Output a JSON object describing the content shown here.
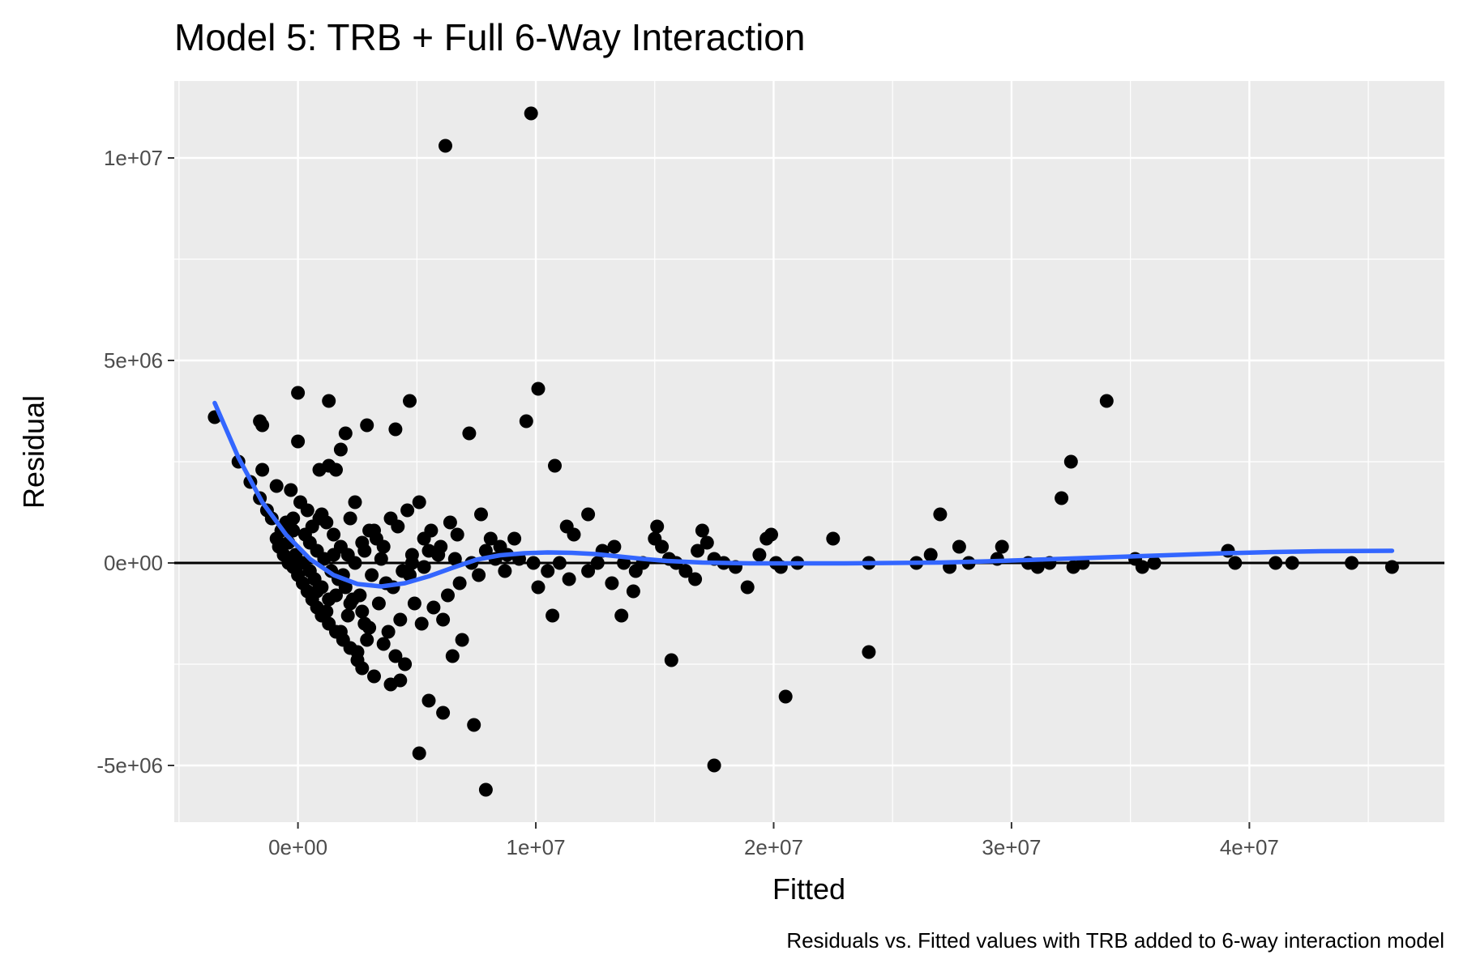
{
  "chart_data": {
    "type": "scatter",
    "title": "Model 5: TRB + Full 6-Way Interaction",
    "caption": "Residuals vs. Fitted values with TRB added to 6-way interaction model",
    "xlabel": "Fitted",
    "ylabel": "Residual",
    "xlim": [
      -5200000,
      48200000
    ],
    "ylim": [
      -6400000,
      11900000
    ],
    "x_ticks": [
      0,
      10000000,
      20000000,
      30000000,
      40000000
    ],
    "x_tick_labels": [
      "0e+00",
      "1e+07",
      "2e+07",
      "3e+07",
      "4e+07"
    ],
    "y_ticks": [
      -5000000,
      0,
      5000000,
      10000000
    ],
    "y_tick_labels": [
      "-5e+06",
      "0e+00",
      "5e+06",
      "1e+07"
    ],
    "grid": true,
    "reference_line_y": 0,
    "colors": {
      "panel_background": "#ebebeb",
      "grid": "#ffffff",
      "points": "#000000",
      "smooth": "#3366ff",
      "reference_line": "#000000"
    },
    "points": [
      [
        -3500000,
        3600000
      ],
      [
        -2500000,
        2500000
      ],
      [
        -2000000,
        2000000
      ],
      [
        -1500000,
        3400000
      ],
      [
        -1600000,
        3500000
      ],
      [
        -1500000,
        2300000
      ],
      [
        -1600000,
        1600000
      ],
      [
        -900000,
        1900000
      ],
      [
        -300000,
        1800000
      ],
      [
        0,
        4200000
      ],
      [
        100000,
        1500000
      ],
      [
        -200000,
        1100000
      ],
      [
        -500000,
        1000000
      ],
      [
        -700000,
        800000
      ],
      [
        -900000,
        600000
      ],
      [
        -1100000,
        1100000
      ],
      [
        -1300000,
        1300000
      ],
      [
        -800000,
        400000
      ],
      [
        -600000,
        200000
      ],
      [
        -400000,
        0
      ],
      [
        -200000,
        -100000
      ],
      [
        0,
        -300000
      ],
      [
        200000,
        -500000
      ],
      [
        400000,
        -700000
      ],
      [
        600000,
        -900000
      ],
      [
        800000,
        -1100000
      ],
      [
        1000000,
        -1300000
      ],
      [
        1300000,
        -1500000
      ],
      [
        1600000,
        -1700000
      ],
      [
        1900000,
        -1900000
      ],
      [
        2200000,
        -2100000
      ],
      [
        2500000,
        -2400000
      ],
      [
        2700000,
        -2600000
      ],
      [
        3200000,
        -2800000
      ],
      [
        3900000,
        -3000000
      ],
      [
        4300000,
        -2900000
      ],
      [
        4500000,
        -2500000
      ],
      [
        4100000,
        -2300000
      ],
      [
        3600000,
        -2000000
      ],
      [
        3000000,
        -1600000
      ],
      [
        2700000,
        -1200000
      ],
      [
        2300000,
        -900000
      ],
      [
        2000000,
        -600000
      ],
      [
        1700000,
        -400000
      ],
      [
        1400000,
        -200000
      ],
      [
        1100000,
        100000
      ],
      [
        800000,
        300000
      ],
      [
        500000,
        500000
      ],
      [
        300000,
        700000
      ],
      [
        600000,
        900000
      ],
      [
        900000,
        1100000
      ],
      [
        1200000,
        1000000
      ],
      [
        1500000,
        700000
      ],
      [
        1800000,
        400000
      ],
      [
        2100000,
        200000
      ],
      [
        2400000,
        0
      ],
      [
        2700000,
        500000
      ],
      [
        3000000,
        800000
      ],
      [
        3300000,
        600000
      ],
      [
        3600000,
        400000
      ],
      [
        3900000,
        1100000
      ],
      [
        4200000,
        900000
      ],
      [
        4600000,
        1300000
      ],
      [
        5100000,
        1500000
      ],
      [
        5600000,
        800000
      ],
      [
        6000000,
        400000
      ],
      [
        6400000,
        1000000
      ],
      [
        6700000,
        700000
      ],
      [
        7200000,
        3200000
      ],
      [
        7700000,
        1200000
      ],
      [
        8100000,
        600000
      ],
      [
        8500000,
        400000
      ],
      [
        8800000,
        200000
      ],
      [
        9100000,
        600000
      ],
      [
        9600000,
        3500000
      ],
      [
        10100000,
        4300000
      ],
      [
        10800000,
        2400000
      ],
      [
        11300000,
        900000
      ],
      [
        11600000,
        700000
      ],
      [
        12200000,
        1200000
      ],
      [
        12800000,
        300000
      ],
      [
        13300000,
        400000
      ],
      [
        13700000,
        0
      ],
      [
        14200000,
        -200000
      ],
      [
        14500000,
        0
      ],
      [
        15000000,
        600000
      ],
      [
        15100000,
        900000
      ],
      [
        15300000,
        400000
      ],
      [
        15600000,
        100000
      ],
      [
        15900000,
        0
      ],
      [
        16300000,
        -200000
      ],
      [
        16700000,
        -400000
      ],
      [
        16800000,
        300000
      ],
      [
        17000000,
        800000
      ],
      [
        17200000,
        500000
      ],
      [
        17500000,
        100000
      ],
      [
        17900000,
        0
      ],
      [
        18400000,
        -100000
      ],
      [
        18900000,
        -600000
      ],
      [
        19400000,
        200000
      ],
      [
        19700000,
        600000
      ],
      [
        19900000,
        700000
      ],
      [
        20100000,
        0
      ],
      [
        20300000,
        -100000
      ],
      [
        20500000,
        -3300000
      ],
      [
        21000000,
        0
      ],
      [
        22500000,
        600000
      ],
      [
        24000000,
        0
      ],
      [
        26000000,
        0
      ],
      [
        26600000,
        200000
      ],
      [
        27000000,
        1200000
      ],
      [
        27400000,
        -100000
      ],
      [
        27800000,
        400000
      ],
      [
        28200000,
        0
      ],
      [
        29400000,
        100000
      ],
      [
        29600000,
        400000
      ],
      [
        30700000,
        0
      ],
      [
        31100000,
        -100000
      ],
      [
        31600000,
        0
      ],
      [
        32100000,
        1600000
      ],
      [
        32500000,
        2500000
      ],
      [
        32600000,
        -100000
      ],
      [
        33000000,
        0
      ],
      [
        34000000,
        4000000
      ],
      [
        35200000,
        100000
      ],
      [
        35500000,
        -100000
      ],
      [
        36000000,
        0
      ],
      [
        39100000,
        300000
      ],
      [
        39400000,
        0
      ],
      [
        41100000,
        0
      ],
      [
        41800000,
        0
      ],
      [
        44300000,
        0
      ],
      [
        46000000,
        -100000
      ],
      [
        6200000,
        10300000
      ],
      [
        9800000,
        11100000
      ],
      [
        5100000,
        -4700000
      ],
      [
        7900000,
        -5600000
      ],
      [
        17500000,
        -5000000
      ],
      [
        7400000,
        -4000000
      ],
      [
        6100000,
        -3700000
      ],
      [
        5500000,
        -3400000
      ],
      [
        15700000,
        -2400000
      ],
      [
        24000000,
        -2200000
      ],
      [
        5200000,
        -1500000
      ],
      [
        6100000,
        -1400000
      ],
      [
        6500000,
        -2300000
      ],
      [
        6900000,
        -1900000
      ],
      [
        10700000,
        -1300000
      ],
      [
        13600000,
        -1300000
      ],
      [
        14100000,
        -700000
      ],
      [
        12200000,
        -200000
      ],
      [
        11400000,
        -400000
      ],
      [
        10100000,
        -600000
      ],
      [
        8700000,
        -200000
      ],
      [
        7600000,
        -300000
      ],
      [
        6800000,
        -500000
      ],
      [
        6300000,
        -800000
      ],
      [
        5700000,
        -1100000
      ],
      [
        4900000,
        -1000000
      ],
      [
        4300000,
        -1400000
      ],
      [
        3800000,
        -1700000
      ],
      [
        2900000,
        -1900000
      ],
      [
        2500000,
        -2200000
      ],
      [
        1800000,
        -1700000
      ],
      [
        1200000,
        -1200000
      ],
      [
        800000,
        -700000
      ],
      [
        1300000,
        -900000
      ],
      [
        2100000,
        -1300000
      ],
      [
        2800000,
        -1500000
      ],
      [
        3400000,
        -1000000
      ],
      [
        4000000,
        -600000
      ],
      [
        4700000,
        -300000
      ],
      [
        5300000,
        -100000
      ],
      [
        5900000,
        200000
      ],
      [
        6600000,
        100000
      ],
      [
        7300000,
        0
      ],
      [
        7900000,
        300000
      ],
      [
        8300000,
        100000
      ],
      [
        9300000,
        100000
      ],
      [
        9900000,
        0
      ],
      [
        10500000,
        -200000
      ],
      [
        11000000,
        0
      ],
      [
        12600000,
        0
      ],
      [
        13200000,
        -500000
      ],
      [
        2000000,
        3200000
      ],
      [
        1800000,
        2800000
      ],
      [
        1600000,
        2300000
      ],
      [
        1300000,
        2400000
      ],
      [
        900000,
        2300000
      ],
      [
        0,
        3000000
      ],
      [
        1300000,
        4000000
      ],
      [
        2900000,
        3400000
      ],
      [
        4100000,
        3300000
      ],
      [
        4700000,
        4000000
      ],
      [
        2400000,
        1500000
      ],
      [
        3200000,
        800000
      ],
      [
        4800000,
        200000
      ],
      [
        5300000,
        600000
      ],
      [
        2200000,
        1100000
      ],
      [
        1000000,
        1200000
      ],
      [
        400000,
        1300000
      ],
      [
        -200000,
        800000
      ],
      [
        -400000,
        500000
      ],
      [
        -100000,
        200000
      ],
      [
        200000,
        0
      ],
      [
        500000,
        -200000
      ],
      [
        700000,
        -400000
      ],
      [
        1000000,
        -600000
      ],
      [
        1600000,
        -800000
      ],
      [
        2200000,
        -1000000
      ],
      [
        2600000,
        -800000
      ],
      [
        3100000,
        -300000
      ],
      [
        3500000,
        100000
      ],
      [
        4400000,
        -200000
      ],
      [
        4800000,
        0
      ],
      [
        5500000,
        300000
      ],
      [
        3700000,
        -500000
      ],
      [
        1900000,
        -300000
      ],
      [
        1500000,
        200000
      ],
      [
        2800000,
        300000
      ]
    ],
    "smooth_curve": [
      [
        -3500000,
        3950000
      ],
      [
        -2500000,
        2600000
      ],
      [
        -1500000,
        1500000
      ],
      [
        -500000,
        700000
      ],
      [
        500000,
        100000
      ],
      [
        1500000,
        -300000
      ],
      [
        2500000,
        -520000
      ],
      [
        3500000,
        -580000
      ],
      [
        4500000,
        -500000
      ],
      [
        5500000,
        -330000
      ],
      [
        6500000,
        -120000
      ],
      [
        7500000,
        80000
      ],
      [
        8500000,
        190000
      ],
      [
        9500000,
        240000
      ],
      [
        10500000,
        260000
      ],
      [
        11500000,
        250000
      ],
      [
        12500000,
        220000
      ],
      [
        13500000,
        160000
      ],
      [
        14500000,
        100000
      ],
      [
        15500000,
        50000
      ],
      [
        17000000,
        10000
      ],
      [
        19000000,
        -10000
      ],
      [
        21000000,
        -10000
      ],
      [
        23000000,
        -10000
      ],
      [
        25000000,
        0
      ],
      [
        27000000,
        10000
      ],
      [
        29000000,
        40000
      ],
      [
        31000000,
        80000
      ],
      [
        33000000,
        120000
      ],
      [
        35000000,
        160000
      ],
      [
        37000000,
        200000
      ],
      [
        39000000,
        240000
      ],
      [
        41000000,
        270000
      ],
      [
        43000000,
        290000
      ],
      [
        46000000,
        300000
      ]
    ]
  }
}
